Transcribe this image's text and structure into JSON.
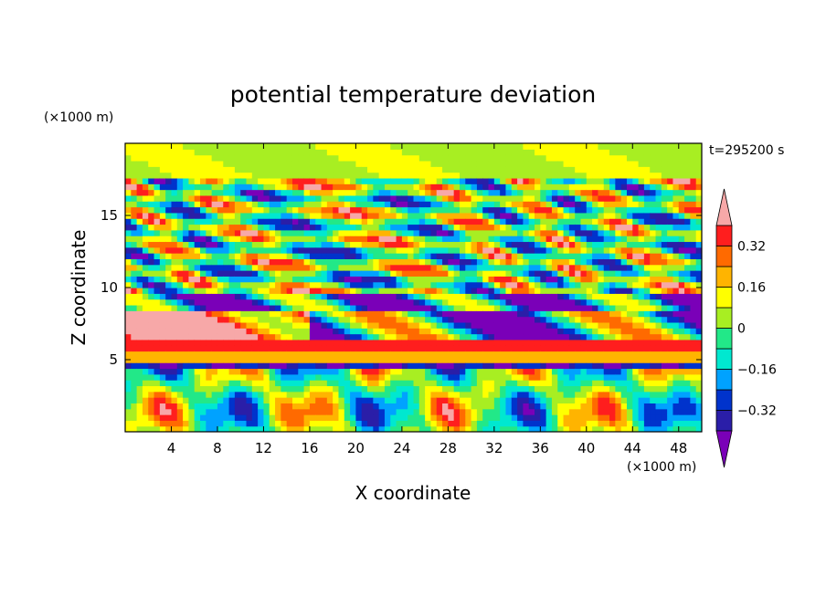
{
  "chart_data": {
    "type": "heatmap",
    "title": "potential temperature deviation",
    "xlabel": "X coordinate",
    "ylabel": "Z coordinate",
    "x_unit": "(×1000 m)",
    "y_unit": "(×1000 m)",
    "time_label": "t=295200 s",
    "xlim": [
      0,
      50
    ],
    "ylim": [
      0,
      20
    ],
    "x_ticks": [
      "4",
      "8",
      "12",
      "16",
      "20",
      "24",
      "28",
      "32",
      "36",
      "40",
      "44",
      "48"
    ],
    "y_ticks": [
      "5",
      "10",
      "15"
    ],
    "colorbar": {
      "labels": [
        "0.32",
        "0.16",
        "0",
        "−0.16",
        "−0.32"
      ],
      "label_values": [
        0.32,
        0.16,
        0,
        -0.16,
        -0.32
      ],
      "levels": [
        -0.4,
        -0.32,
        -0.24,
        -0.16,
        -0.08,
        0,
        0.08,
        0.16,
        0.24,
        0.32,
        0.4
      ],
      "colors": [
        "#7a00b8",
        "#2a1ea8",
        "#0033cc",
        "#00a2ff",
        "#00e8d0",
        "#22e888",
        "#a8ee22",
        "#ffff00",
        "#ffb400",
        "#ff6a00",
        "#ff1e1e",
        "#f7a8a8"
      ],
      "extend": "both"
    },
    "bands": [
      {
        "z_range": [
          0,
          4.2
        ],
        "description": "convective updraft/downdraft pattern, values -0.4 to 0.32"
      },
      {
        "z_range": [
          4.2,
          5.0
        ],
        "value": -0.36
      },
      {
        "z_range": [
          5.0,
          5.8
        ],
        "value": 0.2
      },
      {
        "z_range": [
          5.8,
          6.6
        ],
        "value": 0.36
      },
      {
        "z_range": [
          6.6,
          9.5
        ],
        "description": "mixed warm (>0.4) and cold (<-0.36) patches"
      },
      {
        "z_range": [
          9.5,
          17.5
        ],
        "description": "wavy alternating warm/cold cells, amplitude ~0.4"
      },
      {
        "z_range": [
          17.5,
          20
        ],
        "value": 0.06
      }
    ]
  }
}
